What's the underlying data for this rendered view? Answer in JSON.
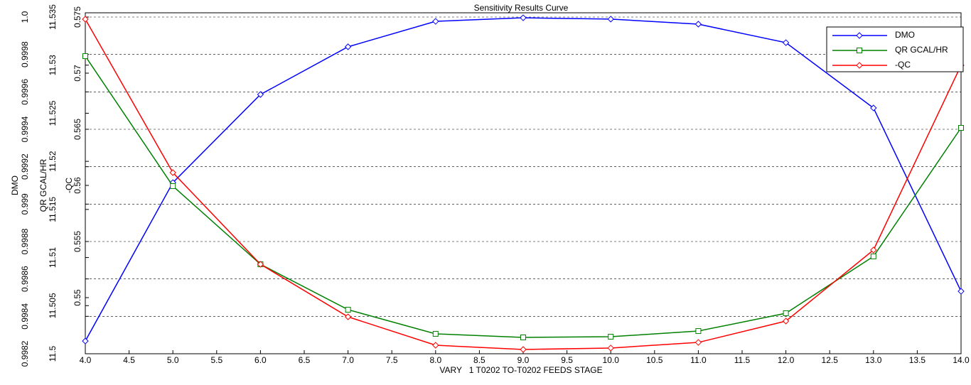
{
  "chart_data": {
    "type": "line",
    "title": "Sensitivity Results Curve",
    "x_label": "VARY   1 T0202 TO-T0202 FEEDS STAGE",
    "y_label": "DMO",
    "y2_label": "QR GCAL/HR",
    "y3_label": "-QC",
    "x": [
      4,
      5,
      6,
      7,
      8,
      9,
      10,
      11,
      12,
      13,
      14
    ],
    "xlim": [
      4,
      14
    ],
    "xticks": [
      {
        "value": 4,
        "label": "4.0"
      },
      {
        "value": 4.5,
        "label": "4.5"
      },
      {
        "value": 5,
        "label": "5.0"
      },
      {
        "value": 5.5,
        "label": "5.5"
      },
      {
        "value": 6,
        "label": "6.0"
      },
      {
        "value": 6.5,
        "label": "6.5"
      },
      {
        "value": 7,
        "label": "7.0"
      },
      {
        "value": 7.5,
        "label": "7.5"
      },
      {
        "value": 8,
        "label": "8.0"
      },
      {
        "value": 8.5,
        "label": "8.5"
      },
      {
        "value": 9,
        "label": "9.0"
      },
      {
        "value": 9.5,
        "label": "9.5"
      },
      {
        "value": 10,
        "label": "10.0"
      },
      {
        "value": 10.5,
        "label": "10.5"
      },
      {
        "value": 11,
        "label": "11.0"
      },
      {
        "value": 11.5,
        "label": "11.5"
      },
      {
        "value": 12,
        "label": "12.0"
      },
      {
        "value": 12.5,
        "label": "12.5"
      },
      {
        "value": 13,
        "label": "13.0"
      },
      {
        "value": 13.5,
        "label": "13.5"
      },
      {
        "value": 14,
        "label": "14.0"
      }
    ],
    "ylim": [
      0.9982,
      1.0
    ],
    "yticks": [
      0.9982,
      0.9984,
      0.9986,
      0.9988,
      0.999,
      0.9992,
      0.9994,
      0.9996,
      0.9998,
      {
        "value": 1.0,
        "label": "1.0"
      }
    ],
    "y2lim": [
      11.5,
      11.535
    ],
    "y2ticks": [
      11.5,
      11.505,
      11.51,
      11.515,
      11.52,
      11.525,
      11.53,
      11.535
    ],
    "y3lim": [
      0.545,
      0.575
    ],
    "y3ticks": [
      0.55,
      0.555,
      0.56,
      0.565,
      0.57,
      0.575
    ],
    "grid": true,
    "legend": "upper right",
    "series": [
      {
        "name": "DMO",
        "color": "#0000ff",
        "marker": "diamond",
        "axis": "y",
        "values": [
          0.998268,
          0.999115,
          0.999586,
          0.999841,
          0.999977,
          0.999996,
          0.999989,
          0.999962,
          0.999863,
          0.999514,
          0.998534
        ]
      },
      {
        "name": "QR GCAL/HR",
        "color": "#008000",
        "marker": "square",
        "axis": "y2",
        "values": [
          11.53094,
          11.51743,
          11.5093,
          11.50458,
          11.50207,
          11.5017,
          11.50177,
          11.50236,
          11.50421,
          11.51012,
          11.52348
        ]
      },
      {
        "name": "-QC",
        "color": "#ff0000",
        "marker": "diamond",
        "axis": "y3",
        "values": [
          0.57481,
          0.56114,
          0.55297,
          0.54829,
          0.54576,
          0.54538,
          0.54551,
          0.54601,
          0.54791,
          0.55424,
          0.5707
        ]
      }
    ]
  }
}
